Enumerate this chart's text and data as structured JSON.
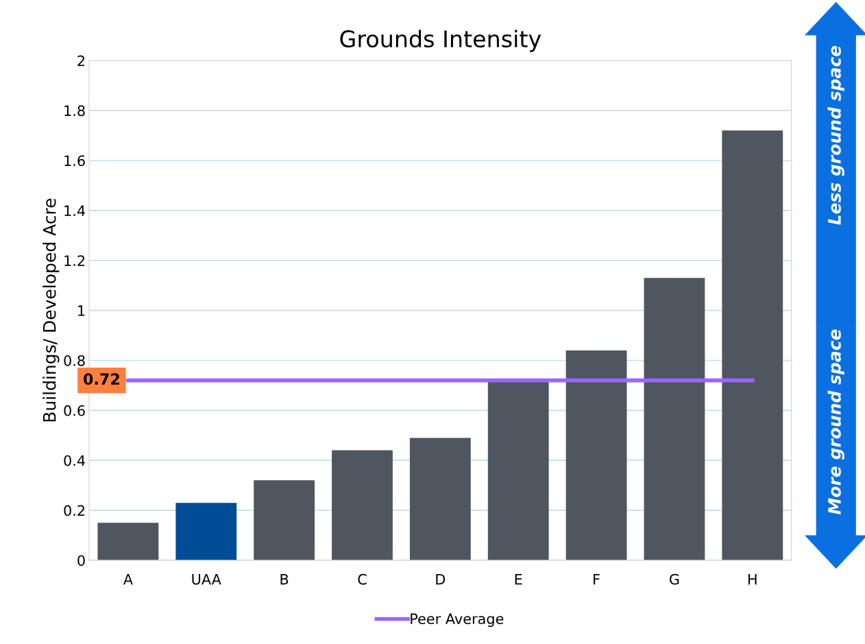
{
  "chart_data": {
    "type": "bar",
    "title": "Grounds Intensity",
    "ylabel": "Buildings/ Developed Acre",
    "categories": [
      "A",
      "UAA",
      "B",
      "C",
      "D",
      "E",
      "F",
      "G",
      "H"
    ],
    "series": [
      {
        "colors": [
          "#4f5660",
          "#004c97",
          "#4f5660",
          "#4f5660",
          "#4f5660",
          "#4f5660",
          "#4f5660",
          "#4f5660",
          "#4f5660"
        ],
        "values": [
          0.15,
          0.23,
          0.32,
          0.44,
          0.49,
          0.72,
          0.84,
          1.13,
          1.72
        ]
      },
      {
        "type": "line",
        "name": "Peer Average",
        "color": "#9966ff",
        "values": [
          0.72,
          0.72,
          0.72,
          0.72,
          0.72,
          0.72,
          0.72,
          0.72,
          0.72
        ]
      }
    ],
    "ylim": [
      0,
      2
    ],
    "yticks": [
      0,
      0.2,
      0.4,
      0.6,
      0.8,
      1,
      1.2,
      1.4,
      1.6,
      1.8,
      2
    ],
    "grid": "y",
    "legend": "bottom",
    "marker": "none",
    "line_style": "solid",
    "annotations": [
      "0.72",
      "Less ground space",
      "More ground space"
    ]
  }
}
